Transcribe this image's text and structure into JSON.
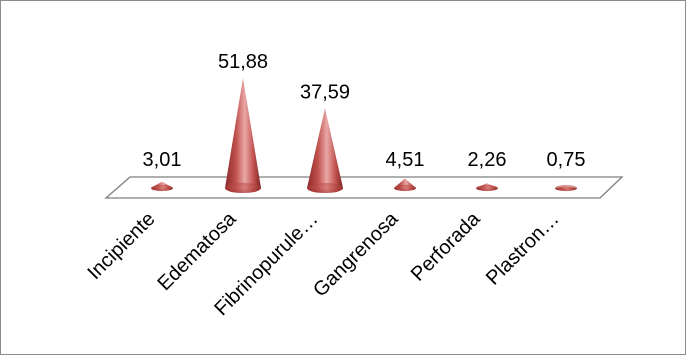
{
  "chart_data": {
    "type": "bar",
    "shape": "cone",
    "three_d": true,
    "categories": [
      "Incipiente",
      "Edematosa",
      "Fibrinopurule…",
      "Gangrenosa",
      "Perforada",
      "Plastron…"
    ],
    "values": [
      3.01,
      51.88,
      37.59,
      4.51,
      2.26,
      0.75
    ],
    "data_labels": [
      "3,01",
      "51,88",
      "37,59",
      "4,51",
      "2,26",
      "0,75"
    ],
    "title": "",
    "xlabel": "",
    "ylabel": "",
    "ylim": [
      0,
      60
    ],
    "grid": false,
    "legend": "none",
    "colors": {
      "bar_fill": "#c0504d",
      "bar_dark": "#8b2a28",
      "bar_light": "#e9a8a6",
      "floor_stroke": "#7f7f7f",
      "frame": "#8c8c8c"
    }
  }
}
